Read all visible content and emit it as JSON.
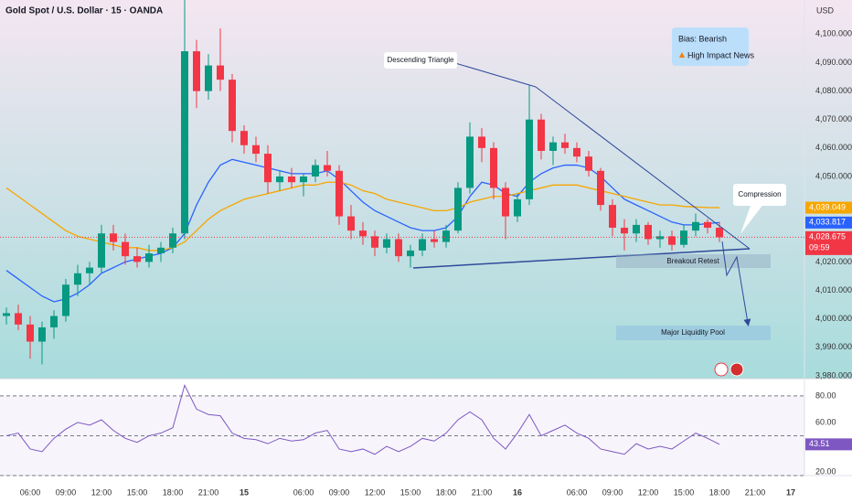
{
  "header": {
    "symbol": "Gold Spot / U.S. Dollar · 15 · OANDA",
    "currency": "USD"
  },
  "info_box": {
    "bias": "Bias: Bearish",
    "news": "High Impact News"
  },
  "annotations": {
    "pattern": "Descending Triangle",
    "compression": "Compression",
    "retest": "Breakout Retest",
    "target": "Major Liquidity Pool"
  },
  "chart_data": [
    {
      "type": "candlestick",
      "categories": [
        null,
        null,
        "06:00",
        null,
        null,
        "09:00",
        null,
        null,
        "12:00",
        null,
        null,
        "15:00",
        null,
        null,
        "18:00",
        null,
        null,
        "21:00",
        null,
        null,
        "15",
        null,
        null,
        null,
        null,
        "06:00",
        null,
        null,
        "09:00",
        null,
        null,
        "12:00",
        null,
        null,
        "15:00",
        null,
        null,
        "18:00",
        null,
        null,
        "21:00",
        null,
        null,
        "16",
        null,
        null,
        null,
        null,
        "06:00",
        null,
        null,
        "09:00",
        null,
        null,
        "12:00",
        null,
        null,
        "15:00",
        null,
        null,
        "18:00",
        null,
        null,
        "21:00",
        null,
        null,
        "17"
      ],
      "open": [
        4001,
        4002,
        3998,
        3992,
        3997,
        4001,
        4012,
        4016,
        4018,
        4030,
        4027,
        4022,
        4020,
        4023,
        4025,
        4030,
        4094,
        4080,
        4089,
        4084,
        4066,
        4061,
        4058,
        4048,
        4050,
        4048,
        4050,
        4054,
        4052,
        4036,
        4031,
        4029,
        4025,
        4028,
        4022,
        4024,
        4028,
        4027,
        4031,
        4046,
        4064,
        4060,
        4046,
        4036,
        4042,
        4070,
        4059,
        4062,
        4060,
        4057,
        4052,
        4040,
        4032,
        4030,
        4033,
        4028,
        4029,
        4026,
        4031,
        4034,
        4032,
        null,
        null,
        null,
        null,
        null,
        null
      ],
      "high": [
        4004,
        4005,
        4001,
        3999,
        4003,
        4014,
        4019,
        4020,
        4033,
        4033,
        4030,
        4025,
        4026,
        4027,
        4032,
        4112,
        4098,
        4093,
        4102,
        4086,
        4068,
        4064,
        4061,
        4052,
        4053,
        4051,
        4056,
        4059,
        4054,
        4040,
        4034,
        4031,
        4030,
        4030,
        4026,
        4030,
        4031,
        4033,
        4048,
        4069,
        4067,
        4062,
        4048,
        4044,
        4082,
        4072,
        4064,
        4065,
        4062,
        4059,
        4053,
        4042,
        4035,
        4035,
        4034,
        4031,
        4031,
        4033,
        4037,
        4035,
        4034,
        null,
        null,
        null,
        null,
        null,
        null
      ],
      "low": [
        3998,
        3996,
        3986,
        3984,
        3993,
        3999,
        4008,
        4012,
        4016,
        4024,
        4019,
        4018,
        4018,
        4020,
        4023,
        4028,
        4074,
        4077,
        4080,
        4062,
        4058,
        4055,
        4044,
        4045,
        4046,
        4043,
        4048,
        4050,
        4033,
        4028,
        4026,
        4022,
        4023,
        4020,
        4018,
        4022,
        4025,
        4025,
        4030,
        4044,
        4055,
        4042,
        4028,
        4034,
        4040,
        4056,
        4054,
        4058,
        4055,
        4050,
        4038,
        4029,
        4024,
        4027,
        4026,
        4025,
        4024,
        4025,
        4029,
        4030,
        4027,
        null,
        null,
        null,
        null,
        null,
        null
      ],
      "close": [
        4002,
        3998,
        3992,
        3997,
        4001,
        4012,
        4016,
        4018,
        4030,
        4027,
        4022,
        4020,
        4023,
        4025,
        4030,
        4094,
        4080,
        4089,
        4084,
        4066,
        4061,
        4058,
        4048,
        4050,
        4048,
        4050,
        4054,
        4052,
        4036,
        4031,
        4029,
        4025,
        4028,
        4022,
        4024,
        4028,
        4027,
        4031,
        4046,
        4064,
        4060,
        4046,
        4036,
        4042,
        4070,
        4059,
        4062,
        4060,
        4057,
        4052,
        4040,
        4032,
        4030,
        4033,
        4028,
        4029,
        4026,
        4031,
        4034,
        4032,
        4028.675,
        null,
        null,
        null,
        null,
        null,
        null
      ],
      "up_color": "#089981",
      "down_color": "#f23645",
      "overlays": [
        {
          "color": "#2962ff",
          "values": [
            4017,
            4014,
            4011,
            4008,
            4006,
            4007,
            4009,
            4012,
            4016,
            4018,
            4020,
            4021,
            4022,
            4023,
            4025,
            4030,
            4040,
            4048,
            4054,
            4056,
            4055,
            4054,
            4053,
            4052,
            4051,
            4051,
            4051,
            4052,
            4049,
            4045,
            4041,
            4038,
            4036,
            4034,
            4032,
            4031,
            4031,
            4032,
            4036,
            4043,
            4048,
            4047,
            4044,
            4043,
            4048,
            4051,
            4053,
            4054,
            4054,
            4053,
            4050,
            4046,
            4042,
            4040,
            4038,
            4036,
            4034,
            4033,
            4033,
            4033.5,
            4033.817,
            null,
            null,
            null,
            null,
            null,
            null
          ]
        },
        {
          "color": "#f7a600",
          "values": [
            4046,
            4043,
            4040,
            4037,
            4034,
            4031,
            4029,
            4028,
            4027,
            4026,
            4025,
            4025,
            4024,
            4024,
            4025,
            4027,
            4031,
            4035,
            4038,
            4040,
            4042,
            4043,
            4044,
            4045,
            4046,
            4047,
            4047,
            4048,
            4048,
            4047,
            4045,
            4044,
            4042,
            4041,
            4040,
            4039,
            4038,
            4038,
            4039,
            4041,
            4042,
            4043,
            4043,
            4044,
            4045,
            4046,
            4047,
            4047,
            4047,
            4046,
            4045,
            4044,
            4043,
            4042,
            4041,
            4040,
            4040,
            4039.5,
            4039.3,
            4039.1,
            4039.049,
            null,
            null,
            null,
            null,
            null,
            null
          ]
        }
      ],
      "price_labels": [
        {
          "value": 4039.049,
          "label": "4,039.049",
          "color": "#f7a600"
        },
        {
          "value": 4033.817,
          "label": "4,033.817",
          "color": "#2962ff"
        },
        {
          "value": 4028.675,
          "label": "4,028.675",
          "color": "#f23645"
        }
      ],
      "countdown": "09:59",
      "ylim": [
        3979,
        4112
      ],
      "yticks": [
        {
          "value": 4100,
          "label": "4,100.000"
        },
        {
          "value": 4090,
          "label": "4,090.000"
        },
        {
          "value": 4080,
          "label": "4,080.000"
        },
        {
          "value": 4070,
          "label": "4,070.000"
        },
        {
          "value": 4060,
          "label": "4,060.000"
        },
        {
          "value": 4050,
          "label": "4,050.000"
        },
        {
          "value": 4020,
          "label": "4,020.000"
        },
        {
          "value": 4010,
          "label": "4,010.000"
        },
        {
          "value": 4000,
          "label": "4,000.000"
        },
        {
          "value": 3990,
          "label": "3,990.000"
        },
        {
          "value": 3980,
          "label": "3,980.000"
        }
      ]
    },
    {
      "type": "line",
      "color": "#7e57c2",
      "values": [
        50,
        52,
        40,
        38,
        48,
        55,
        60,
        58,
        62,
        54,
        48,
        45,
        50,
        52,
        56,
        88,
        70,
        66,
        65,
        52,
        48,
        47,
        44,
        48,
        46,
        47,
        52,
        54,
        40,
        38,
        40,
        36,
        42,
        38,
        42,
        48,
        46,
        52,
        62,
        68,
        62,
        48,
        40,
        52,
        66,
        50,
        54,
        58,
        52,
        48,
        40,
        38,
        36,
        44,
        40,
        42,
        40,
        46,
        52,
        48,
        43.51,
        null,
        null,
        null,
        null,
        null,
        null
      ],
      "bands": [
        80,
        50,
        20
      ],
      "price_labels": [
        {
          "value": 43.51,
          "label": "43.51",
          "color": "#7e57c2"
        }
      ],
      "ylim": [
        20,
        93
      ],
      "yticks": [
        {
          "value": 80,
          "label": "80.00"
        },
        {
          "value": 60,
          "label": "60.00"
        },
        {
          "value": 20,
          "label": "20.00"
        }
      ]
    }
  ]
}
